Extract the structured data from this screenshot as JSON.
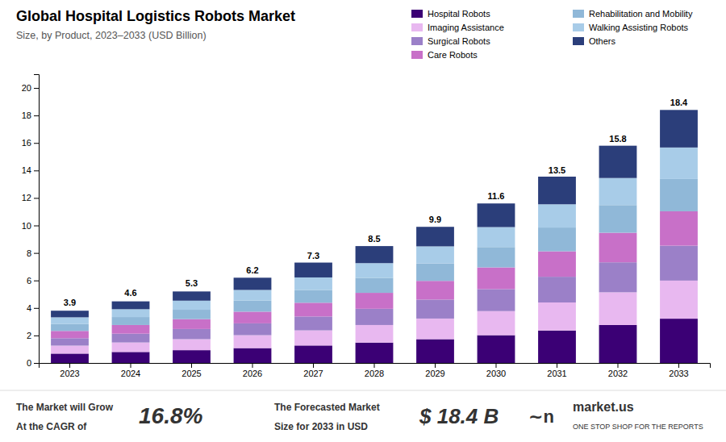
{
  "chart_data": {
    "type": "bar",
    "title": "Global Hospital Logistics Robots Market",
    "subtitle": "Size, by Product, 2023–2033 (USD Billion)",
    "categories": [
      "2023",
      "2024",
      "2025",
      "2026",
      "2027",
      "2028",
      "2029",
      "2030",
      "2031",
      "2032",
      "2033"
    ],
    "series": [
      {
        "name": "Hospital Robots",
        "color": "#3B0075",
        "values": [
          0.68,
          0.8,
          0.93,
          1.08,
          1.27,
          1.48,
          1.73,
          2.02,
          2.36,
          2.76,
          3.22
        ]
      },
      {
        "name": "Imaging Assistance",
        "color": "#E8B8F0",
        "values": [
          0.58,
          0.69,
          0.8,
          0.94,
          1.1,
          1.28,
          1.5,
          1.75,
          2.04,
          2.38,
          2.77
        ]
      },
      {
        "name": "Surgical Robots",
        "color": "#9B80C8",
        "values": [
          0.54,
          0.64,
          0.74,
          0.86,
          1.01,
          1.18,
          1.38,
          1.6,
          1.87,
          2.18,
          2.54
        ]
      },
      {
        "name": "Care Robots",
        "color": "#C870C8",
        "values": [
          0.53,
          0.63,
          0.72,
          0.85,
          1.0,
          1.16,
          1.36,
          1.58,
          1.85,
          2.15,
          2.5
        ]
      },
      {
        "name": "Rehabilitation and Mobility",
        "color": "#90B8D8",
        "values": [
          0.5,
          0.58,
          0.68,
          0.8,
          0.93,
          1.09,
          1.27,
          1.48,
          1.73,
          2.01,
          2.35
        ]
      },
      {
        "name": "Walking Assisting Robots",
        "color": "#A8CCE8",
        "values": [
          0.49,
          0.57,
          0.66,
          0.78,
          0.91,
          1.07,
          1.24,
          1.45,
          1.69,
          1.97,
          2.29
        ]
      },
      {
        "name": "Others",
        "color": "#2B3E7A",
        "values": [
          0.48,
          0.57,
          0.67,
          0.89,
          1.08,
          1.24,
          1.42,
          1.72,
          2.01,
          2.35,
          2.73
        ]
      }
    ],
    "totals": [
      3.9,
      4.6,
      5.3,
      6.2,
      7.3,
      8.5,
      9.9,
      11.6,
      13.5,
      15.8,
      18.4
    ],
    "stacked": true,
    "ylim": [
      0,
      21
    ],
    "yticks": [
      0,
      2,
      4,
      6,
      8,
      10,
      12,
      14,
      16,
      18,
      20
    ],
    "grid": false,
    "legend": "upper right",
    "annotations": [
      "The Market will Grow",
      "At the CAGR of",
      "16.8%",
      "The Forecasted Market",
      "Size for 2033 in USD",
      "$ 18.4 B",
      "∼n",
      "market.us",
      "ONE STOP SHOP FOR THE REPORTS"
    ]
  }
}
